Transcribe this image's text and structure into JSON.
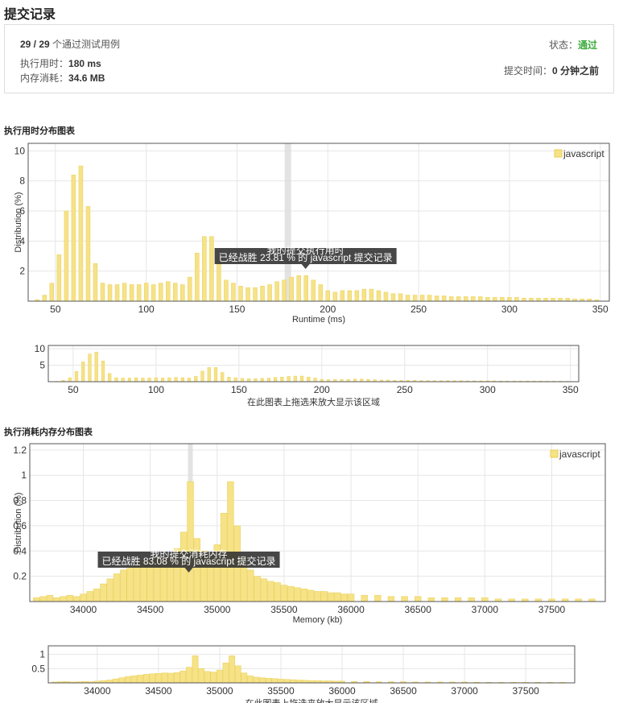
{
  "page": {
    "title": "提交记录"
  },
  "summary": {
    "passed": "29 / 29",
    "passed_suffix": "个通过测试用例",
    "runtime_label": "执行用时：",
    "runtime_value": "180 ms",
    "memory_label": "内存消耗：",
    "memory_value": "34.6 MB",
    "status_label": "状态：",
    "status_value": "通过",
    "status_color": "#3bab3b",
    "submit_time_label": "提交时间：",
    "submit_time_value": "0 分钟之前"
  },
  "runtime_section": {
    "title": "执行用时分布图表"
  },
  "memory_section": {
    "title": "执行消耗内存分布图表"
  },
  "chart_data": [
    {
      "type": "bar",
      "xlabel": "Runtime (ms)",
      "ylabel": "Distribution (%)",
      "xlim": [
        35,
        355
      ],
      "ylim": [
        0,
        10.5
      ],
      "xticks": [
        50,
        100,
        150,
        200,
        250,
        300,
        350
      ],
      "yticks": [
        2,
        4,
        6,
        8,
        10
      ],
      "legend": "javascript",
      "legend_position": "top-right",
      "bar_color": "#f6e287",
      "bar_stroke": "#e9cf53",
      "grid": true,
      "highlight_x": 178,
      "tooltip_title": "我的提交执行用时",
      "tooltip_text": "已经战胜 23.81 % 的 javascript 提交记录",
      "x": [
        40,
        44,
        48,
        52,
        56,
        60,
        64,
        68,
        72,
        76,
        80,
        84,
        88,
        92,
        96,
        100,
        104,
        108,
        112,
        116,
        120,
        124,
        128,
        132,
        136,
        140,
        144,
        148,
        152,
        156,
        160,
        164,
        168,
        172,
        176,
        180,
        184,
        188,
        192,
        196,
        200,
        204,
        208,
        212,
        216,
        220,
        224,
        228,
        232,
        236,
        240,
        244,
        248,
        252,
        256,
        260,
        264,
        268,
        272,
        276,
        280,
        284,
        288,
        292,
        296,
        300,
        304,
        308,
        312,
        316,
        320,
        324,
        328,
        332,
        336,
        340,
        344,
        348
      ],
      "values": [
        0.1,
        0.4,
        1.2,
        3.1,
        6.0,
        8.4,
        9.0,
        6.3,
        2.5,
        1.2,
        1.1,
        1.1,
        1.2,
        1.1,
        1.1,
        1.2,
        1.1,
        1.2,
        1.3,
        1.2,
        1.1,
        1.6,
        3.2,
        4.3,
        4.3,
        2.8,
        1.4,
        1.2,
        1.0,
        0.9,
        0.9,
        1.0,
        1.1,
        1.3,
        1.4,
        1.6,
        1.7,
        1.7,
        1.4,
        1.1,
        0.7,
        0.6,
        0.7,
        0.7,
        0.7,
        0.8,
        0.8,
        0.7,
        0.6,
        0.5,
        0.5,
        0.4,
        0.4,
        0.4,
        0.4,
        0.35,
        0.35,
        0.3,
        0.3,
        0.3,
        0.3,
        0.3,
        0.25,
        0.25,
        0.25,
        0.25,
        0.25,
        0.2,
        0.2,
        0.2,
        0.2,
        0.2,
        0.2,
        0.2,
        0.15,
        0.15,
        0.15,
        0.1
      ]
    },
    {
      "type": "bar",
      "xlabel": "在此图表上拖选来放大显示该区域",
      "xlim": [
        35,
        355
      ],
      "ylim": [
        0,
        11
      ],
      "xticks": [
        50,
        100,
        150,
        200,
        250,
        300,
        350
      ],
      "yticks": [
        5,
        10
      ],
      "bar_color": "#f6e287",
      "bar_stroke": "#e9cf53",
      "grid": true
    },
    {
      "type": "bar",
      "xlabel": "Memory (kb)",
      "ylabel": "Distribution (%)",
      "xlim": [
        33600,
        37900
      ],
      "ylim": [
        0,
        1.25
      ],
      "xticks": [
        34000,
        34500,
        35000,
        35500,
        36000,
        36500,
        37000,
        37500
      ],
      "yticks": [
        0.2,
        0.4,
        0.6,
        0.8,
        1.0,
        1.2
      ],
      "legend": "javascript",
      "legend_position": "top-right",
      "bar_color": "#f6e287",
      "bar_stroke": "#e9cf53",
      "grid": true,
      "highlight_x": 34800,
      "tooltip_title": "我的提交消耗内存",
      "tooltip_text": "已经战胜 83.08 % 的 javascript 提交记录",
      "x": [
        33650,
        33700,
        33750,
        33800,
        33850,
        33900,
        33950,
        34000,
        34050,
        34100,
        34150,
        34200,
        34250,
        34300,
        34350,
        34400,
        34450,
        34500,
        34550,
        34600,
        34650,
        34700,
        34750,
        34800,
        34850,
        34900,
        34950,
        35000,
        35050,
        35100,
        35150,
        35200,
        35250,
        35300,
        35350,
        35400,
        35450,
        35500,
        35550,
        35600,
        35650,
        35700,
        35750,
        35800,
        35850,
        35900,
        35950,
        36000,
        36100,
        36200,
        36300,
        36400,
        36500,
        36600,
        36700,
        36800,
        36900,
        37000,
        37100,
        37200,
        37300,
        37400,
        37500,
        37600,
        37700,
        37800
      ],
      "values": [
        0.03,
        0.04,
        0.05,
        0.03,
        0.04,
        0.05,
        0.04,
        0.06,
        0.08,
        0.1,
        0.14,
        0.18,
        0.22,
        0.25,
        0.27,
        0.3,
        0.32,
        0.33,
        0.35,
        0.34,
        0.36,
        0.42,
        0.55,
        0.95,
        0.5,
        0.4,
        0.38,
        0.45,
        0.7,
        0.95,
        0.6,
        0.35,
        0.25,
        0.2,
        0.18,
        0.16,
        0.15,
        0.13,
        0.12,
        0.11,
        0.1,
        0.09,
        0.08,
        0.08,
        0.07,
        0.07,
        0.06,
        0.06,
        0.05,
        0.05,
        0.04,
        0.04,
        0.04,
        0.03,
        0.03,
        0.03,
        0.03,
        0.03,
        0.02,
        0.02,
        0.02,
        0.02,
        0.02,
        0.02,
        0.02,
        0.02
      ]
    },
    {
      "type": "bar",
      "xlabel": "在此图表上拖选来放大显示该区域",
      "xlim": [
        33600,
        37900
      ],
      "ylim": [
        0,
        1.3
      ],
      "xticks": [
        34000,
        34500,
        35000,
        35500,
        36000,
        36500,
        37000,
        37500
      ],
      "yticks": [
        0.5,
        1.0
      ],
      "bar_color": "#f6e287",
      "bar_stroke": "#e9cf53",
      "grid": true
    }
  ]
}
